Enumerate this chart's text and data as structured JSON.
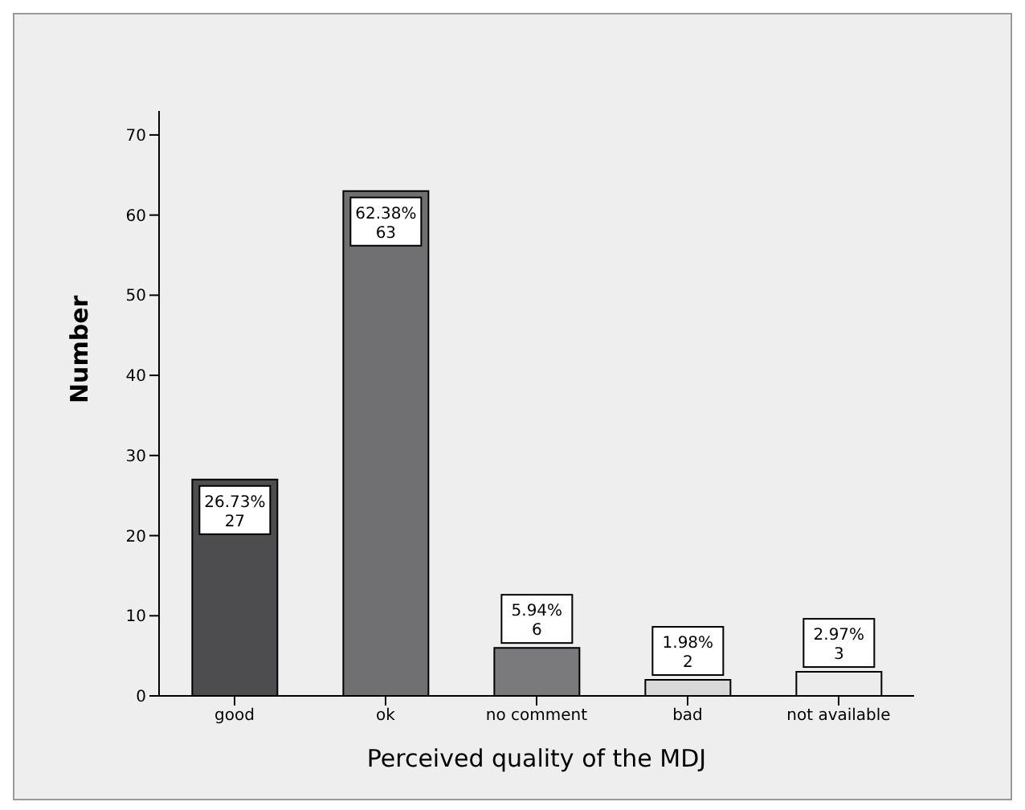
{
  "chart_data": {
    "type": "bar",
    "xlabel": "Perceived quality of the MDJ",
    "ylabel": "Number",
    "categories": [
      "good",
      "ok",
      "no comment",
      "bad",
      "not available"
    ],
    "values": [
      27,
      63,
      6,
      2,
      3
    ],
    "colors": [
      "#4d4d4f",
      "#707072",
      "#7a7a7c",
      "#d8d8d8",
      "#ececec"
    ],
    "value_labels": [
      "26.73%\n27",
      "62.38%\n63",
      "5.94%\n6",
      "1.98%\n2",
      "2.97%\n3"
    ],
    "ylim": [
      0,
      73
    ],
    "yticks": [
      0,
      10,
      20,
      30,
      40,
      50,
      60,
      70
    ],
    "grid": false,
    "legend": false
  }
}
